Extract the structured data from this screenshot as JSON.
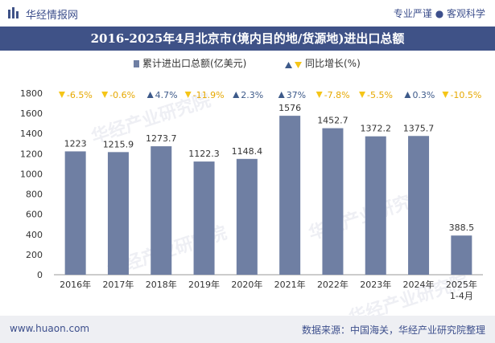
{
  "header": {
    "brand": "华经情报网",
    "tagline": "专业严谨 ● 客观科学"
  },
  "colors": {
    "brand": "#3f5287",
    "bar": "#6f7fa3",
    "up": "#3d5a8a",
    "down": "#f5c518"
  },
  "watermark": "华经产业研究院",
  "footer": {
    "website": "www.huaon.com",
    "source": "数据来源：中国海关，华经产业研究院整理"
  },
  "chart_data": {
    "type": "bar",
    "title": "2016-2025年4月北京市(境内目的地/货源地)进出口总额",
    "categories": [
      "2016年",
      "2017年",
      "2018年",
      "2019年",
      "2020年",
      "2021年",
      "2022年",
      "2023年",
      "2024年",
      "2025年\n1-4月"
    ],
    "series": [
      {
        "name": "累计进出口总额(亿美元)",
        "values": [
          1223,
          1215.9,
          1273.7,
          1122.3,
          1148.4,
          1576,
          1452.7,
          1372.2,
          1375.7,
          388.5
        ]
      }
    ],
    "value_labels": [
      "1223",
      "1215.9",
      "1273.7",
      "1122.3",
      "1148.4",
      "1576",
      "1452.7",
      "1372.2",
      "1375.7",
      "388.5"
    ],
    "growth_series_name": "同比增长(%)",
    "growth_labels": [
      "-6.5%",
      "-0.6%",
      "4.7%",
      "-11.9%",
      "2.3%",
      "37%",
      "-7.8%",
      "-5.5%",
      "0.3%",
      "-10.5%"
    ],
    "growth_direction": [
      "down",
      "down",
      "up",
      "down",
      "up",
      "up",
      "down",
      "down",
      "up",
      "down"
    ],
    "ylim": [
      0,
      1800
    ],
    "yticks": [
      0,
      200,
      400,
      600,
      800,
      1000,
      1200,
      1400,
      1600,
      1800
    ],
    "grid": false,
    "legend_position": "top-center"
  }
}
